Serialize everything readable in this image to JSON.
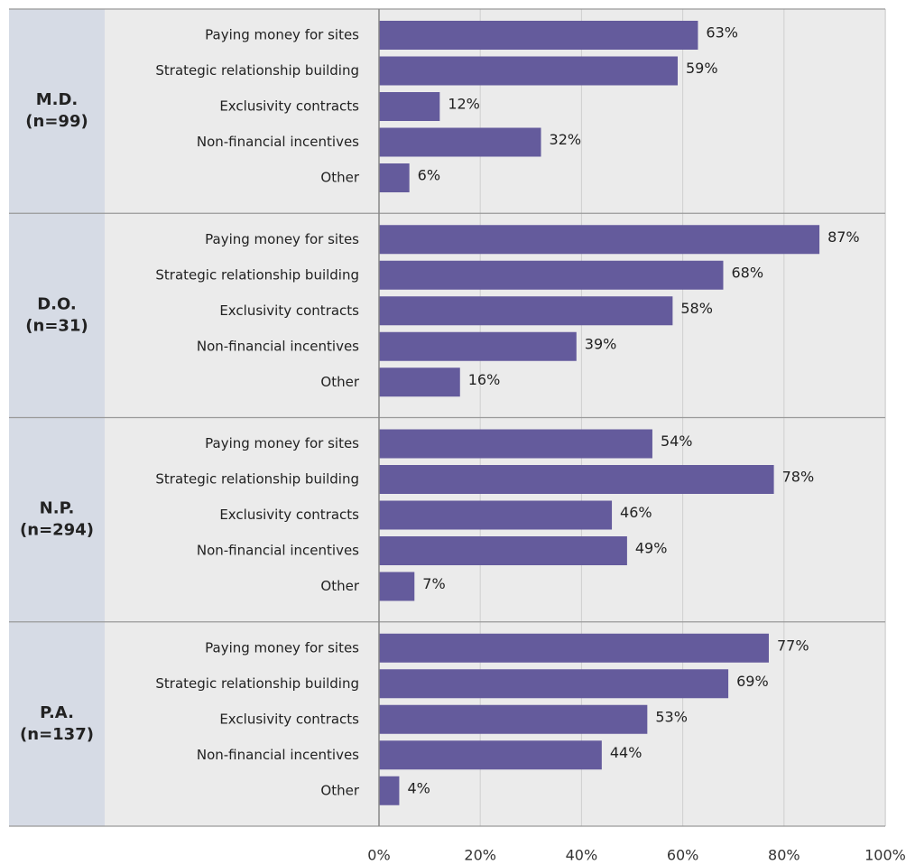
{
  "chart_data": {
    "type": "bar",
    "color": "#645b9c",
    "xlim": [
      0,
      100
    ],
    "xticks": [
      {
        "value": 0,
        "label": "0%"
      },
      {
        "value": 20,
        "label": "20%"
      },
      {
        "value": 40,
        "label": "40%"
      },
      {
        "value": 60,
        "label": "60%"
      },
      {
        "value": 80,
        "label": "80%"
      },
      {
        "value": 100,
        "label": "100%"
      }
    ],
    "grid": true,
    "groups": [
      {
        "label": [
          "M.D.",
          "(n=99)"
        ],
        "categories": [
          "Paying money for sites",
          "Strategic relationship building",
          "Exclusivity contracts",
          "Non-financial incentives",
          "Other"
        ],
        "values": [
          63,
          59,
          12,
          32,
          6
        ],
        "value_labels": [
          "63%",
          "59%",
          "12%",
          "32%",
          "6%"
        ]
      },
      {
        "label": [
          "D.O.",
          "(n=31)"
        ],
        "categories": [
          "Paying money for sites",
          "Strategic relationship building",
          "Exclusivity contracts",
          "Non-financial incentives",
          "Other"
        ],
        "values": [
          87,
          68,
          58,
          39,
          16
        ],
        "value_labels": [
          "87%",
          "68%",
          "58%",
          "39%",
          "16%"
        ]
      },
      {
        "label": [
          "N.P.",
          "(n=294)"
        ],
        "categories": [
          "Paying money for sites",
          "Strategic relationship building",
          "Exclusivity contracts",
          "Non-financial incentives",
          "Other"
        ],
        "values": [
          54,
          78,
          46,
          49,
          7
        ],
        "value_labels": [
          "54%",
          "78%",
          "46%",
          "49%",
          "7%"
        ]
      },
      {
        "label": [
          "P.A.",
          "(n=137)"
        ],
        "categories": [
          "Paying money for sites",
          "Strategic relationship building",
          "Exclusivity contracts",
          "Non-financial incentives",
          "Other"
        ],
        "values": [
          77,
          69,
          53,
          44,
          4
        ],
        "value_labels": [
          "77%",
          "69%",
          "53%",
          "44%",
          "4%"
        ]
      }
    ]
  }
}
